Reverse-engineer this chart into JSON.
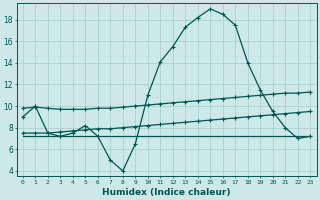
{
  "xlabel": "Humidex (Indice chaleur)",
  "bg_color": "#cce8e8",
  "grid_color": "#aacccc",
  "line_color": "#005555",
  "xlim": [
    -0.5,
    23.5
  ],
  "ylim": [
    3.5,
    19.5
  ],
  "xticks": [
    0,
    1,
    2,
    3,
    4,
    5,
    6,
    7,
    8,
    9,
    10,
    11,
    12,
    13,
    14,
    15,
    16,
    17,
    18,
    19,
    20,
    21,
    22,
    23
  ],
  "yticks": [
    4,
    6,
    8,
    10,
    12,
    14,
    16,
    18
  ],
  "line1_x": [
    0,
    1,
    2,
    3,
    4,
    5,
    6,
    7,
    8,
    9,
    10,
    11,
    12,
    13,
    14,
    15,
    16,
    17,
    18,
    19,
    20,
    21,
    22,
    23
  ],
  "line1_y": [
    9.0,
    10.0,
    7.5,
    7.2,
    7.5,
    8.2,
    7.2,
    5.0,
    4.0,
    6.5,
    11.0,
    14.1,
    15.5,
    17.3,
    18.2,
    19.0,
    18.5,
    17.5,
    14.0,
    11.5,
    9.5,
    8.0,
    7.0,
    7.2
  ],
  "line2_x": [
    0,
    1,
    2,
    3,
    4,
    5,
    6,
    7,
    8,
    9,
    10,
    11,
    12,
    13,
    14,
    15,
    16,
    17,
    18,
    19,
    20,
    21,
    22,
    23
  ],
  "line2_y": [
    9.8,
    9.9,
    9.8,
    9.7,
    9.7,
    9.7,
    9.8,
    9.8,
    9.9,
    10.0,
    10.1,
    10.2,
    10.3,
    10.4,
    10.5,
    10.6,
    10.7,
    10.8,
    10.9,
    11.0,
    11.1,
    11.2,
    11.2,
    11.3
  ],
  "line3_x": [
    0,
    1,
    2,
    3,
    4,
    5,
    6,
    7,
    8,
    9,
    10,
    11,
    12,
    13,
    14,
    15,
    16,
    17,
    18,
    19,
    20,
    21,
    22,
    23
  ],
  "line3_y": [
    7.5,
    7.5,
    7.5,
    7.6,
    7.7,
    7.8,
    7.9,
    7.9,
    8.0,
    8.1,
    8.2,
    8.3,
    8.4,
    8.5,
    8.6,
    8.7,
    8.8,
    8.9,
    9.0,
    9.1,
    9.2,
    9.3,
    9.4,
    9.5
  ],
  "line4_x": [
    0,
    1,
    2,
    3,
    4,
    5,
    6,
    7,
    8,
    9,
    10,
    11,
    12,
    13,
    14,
    15,
    16,
    17,
    18,
    19,
    20,
    21,
    22,
    23
  ],
  "line4_y": [
    7.2,
    7.2,
    7.2,
    7.2,
    7.2,
    7.2,
    7.2,
    7.2,
    7.2,
    7.2,
    7.2,
    7.2,
    7.2,
    7.2,
    7.2,
    7.2,
    7.2,
    7.2,
    7.2,
    7.2,
    7.2,
    7.2,
    7.2,
    7.2
  ]
}
